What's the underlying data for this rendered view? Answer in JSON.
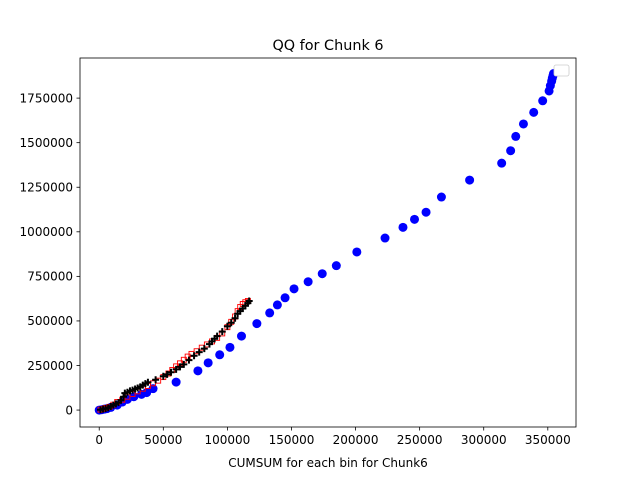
{
  "chart_data": {
    "type": "scatter",
    "title": "QQ for Chunk 6",
    "xlabel": "CUMSUM for each bin for Chunk6",
    "ylabel": "",
    "xlim": [
      -15000,
      372000
    ],
    "ylim": [
      -95000,
      1975000
    ],
    "xticks": [
      0,
      50000,
      100000,
      150000,
      200000,
      250000,
      300000,
      350000
    ],
    "yticks": [
      0,
      250000,
      500000,
      750000,
      1000000,
      1250000,
      1500000,
      1750000
    ],
    "grid": false,
    "legend": {
      "position": "top-right",
      "entries": []
    },
    "series": [
      {
        "marker": "circle",
        "color": "#0000ff",
        "points": [
          [
            0,
            0
          ],
          [
            2000,
            2000
          ],
          [
            4000,
            5000
          ],
          [
            6000,
            8000
          ],
          [
            9000,
            15000
          ],
          [
            14000,
            28000
          ],
          [
            18000,
            45000
          ],
          [
            22000,
            60000
          ],
          [
            27000,
            75000
          ],
          [
            33000,
            88000
          ],
          [
            37000,
            98000
          ],
          [
            42000,
            120000
          ],
          [
            60000,
            157000
          ],
          [
            77000,
            220000
          ],
          [
            85000,
            265000
          ],
          [
            94000,
            310000
          ],
          [
            102000,
            352000
          ],
          [
            111000,
            415000
          ],
          [
            123000,
            485000
          ],
          [
            133000,
            545000
          ],
          [
            139000,
            590000
          ],
          [
            145000,
            630000
          ],
          [
            152000,
            680000
          ],
          [
            163000,
            720000
          ],
          [
            174000,
            765000
          ],
          [
            185000,
            810000
          ],
          [
            201000,
            887000
          ],
          [
            223000,
            965000
          ],
          [
            237000,
            1025000
          ],
          [
            246000,
            1070000
          ],
          [
            255000,
            1110000
          ],
          [
            267000,
            1195000
          ],
          [
            289000,
            1290000
          ],
          [
            314000,
            1385000
          ],
          [
            321000,
            1455000
          ],
          [
            325000,
            1535000
          ],
          [
            331000,
            1605000
          ],
          [
            339000,
            1670000
          ],
          [
            346000,
            1735000
          ],
          [
            351000,
            1790000
          ],
          [
            352000,
            1820000
          ],
          [
            353000,
            1845000
          ],
          [
            353500,
            1862000
          ],
          [
            354000,
            1875000
          ],
          [
            354500,
            1888000
          ]
        ]
      },
      {
        "marker": "square-open",
        "color": "#ff0000",
        "points": [
          [
            1000,
            2000
          ],
          [
            3000,
            6000
          ],
          [
            5000,
            12000
          ],
          [
            8000,
            18000
          ],
          [
            11000,
            30000
          ],
          [
            14000,
            45000
          ],
          [
            18000,
            58000
          ],
          [
            22000,
            75000
          ],
          [
            26000,
            90000
          ],
          [
            30000,
            105000
          ],
          [
            34000,
            120000
          ],
          [
            38000,
            135000
          ],
          [
            42000,
            150000
          ],
          [
            46000,
            165000
          ],
          [
            50000,
            185000
          ],
          [
            54000,
            205000
          ],
          [
            57000,
            225000
          ],
          [
            60000,
            245000
          ],
          [
            63000,
            262000
          ],
          [
            66000,
            282000
          ],
          [
            69000,
            300000
          ],
          [
            72000,
            315000
          ],
          [
            76000,
            330000
          ],
          [
            80000,
            350000
          ],
          [
            84000,
            368000
          ],
          [
            88000,
            385000
          ],
          [
            92000,
            405000
          ],
          [
            96000,
            430000
          ],
          [
            100000,
            465000
          ],
          [
            103000,
            495000
          ],
          [
            106000,
            525000
          ],
          [
            108000,
            555000
          ],
          [
            110000,
            578000
          ],
          [
            112000,
            595000
          ],
          [
            114000,
            605000
          ],
          [
            116000,
            612000
          ]
        ]
      },
      {
        "marker": "plus",
        "color": "#000000",
        "points": [
          [
            1000,
            2000
          ],
          [
            3000,
            5000
          ],
          [
            5000,
            8000
          ],
          [
            7000,
            12000
          ],
          [
            9000,
            20000
          ],
          [
            11000,
            28000
          ],
          [
            13000,
            35000
          ],
          [
            15000,
            42000
          ],
          [
            17000,
            55000
          ],
          [
            19000,
            75000
          ],
          [
            20000,
            95000
          ],
          [
            22000,
            100000
          ],
          [
            24000,
            108000
          ],
          [
            26000,
            112000
          ],
          [
            28000,
            118000
          ],
          [
            30000,
            124000
          ],
          [
            32000,
            130000
          ],
          [
            34000,
            140000
          ],
          [
            36000,
            148000
          ],
          [
            38000,
            156000
          ],
          [
            44000,
            170000
          ],
          [
            50000,
            190000
          ],
          [
            53000,
            200000
          ],
          [
            56000,
            212000
          ],
          [
            60000,
            228000
          ],
          [
            63000,
            242000
          ],
          [
            66000,
            256000
          ],
          [
            70000,
            280000
          ],
          [
            74000,
            305000
          ],
          [
            78000,
            325000
          ],
          [
            82000,
            345000
          ],
          [
            86000,
            370000
          ],
          [
            88000,
            385000
          ],
          [
            90000,
            400000
          ],
          [
            92000,
            415000
          ],
          [
            96000,
            440000
          ],
          [
            100000,
            470000
          ],
          [
            103000,
            490000
          ],
          [
            106000,
            515000
          ],
          [
            108000,
            540000
          ],
          [
            110000,
            555000
          ],
          [
            112000,
            570000
          ],
          [
            114000,
            585000
          ],
          [
            116000,
            600000
          ],
          [
            117000,
            612000
          ]
        ]
      }
    ]
  }
}
